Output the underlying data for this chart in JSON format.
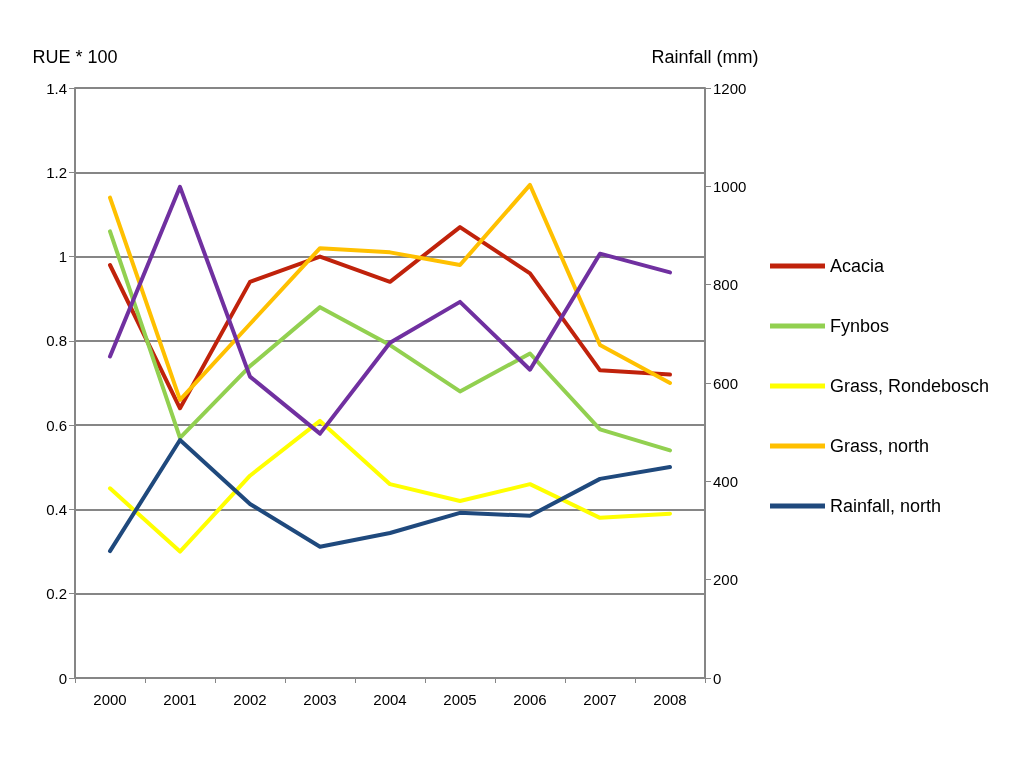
{
  "chart_data": {
    "type": "line",
    "ylabel": "RUE * 100",
    "y2label": "Rainfall (mm)",
    "categories": [
      "2000",
      "2001",
      "2002",
      "2003",
      "2004",
      "2005",
      "2006",
      "2007",
      "2008"
    ],
    "series": [
      {
        "name": "Acacia",
        "color": "#c0220b",
        "values": [
          0.98,
          0.64,
          0.94,
          1.0,
          0.94,
          1.07,
          0.96,
          0.73,
          0.72
        ]
      },
      {
        "name": "Fynbos",
        "color": "#92d050",
        "values": [
          1.06,
          0.57,
          0.74,
          0.88,
          0.79,
          0.68,
          0.77,
          0.59,
          0.54
        ]
      },
      {
        "name": "Grass, Rondebosch",
        "color": "#ffff00",
        "values": [
          0.45,
          0.3,
          0.48,
          0.61,
          0.46,
          0.42,
          0.46,
          0.38,
          0.39
        ]
      },
      {
        "name": "Grass, north",
        "color": "#ffc000",
        "values": [
          1.14,
          0.66,
          0.84,
          1.02,
          1.01,
          0.98,
          1.17,
          0.79,
          0.7
        ]
      },
      {
        "name": "Rainfall, north",
        "color": "#1f497d",
        "axis": "y2",
        "values": [
          258,
          484,
          354,
          267,
          295,
          336,
          330,
          405,
          429
        ]
      },
      {
        "color": "#7030a0",
        "axis": "y2",
        "values": [
          654,
          999,
          613,
          497,
          682,
          765,
          627,
          863,
          825
        ]
      }
    ],
    "ylim": [
      0,
      1.4
    ],
    "yticks": [
      0,
      0.2,
      0.4,
      0.6,
      0.8,
      1,
      1.2,
      1.4
    ],
    "y2lim": [
      0,
      1200
    ],
    "y2ticks": [
      0,
      200,
      400,
      600,
      800,
      1000,
      1200
    ],
    "grid": "y",
    "legend": "right",
    "marker": "none",
    "line_style": "solid"
  }
}
